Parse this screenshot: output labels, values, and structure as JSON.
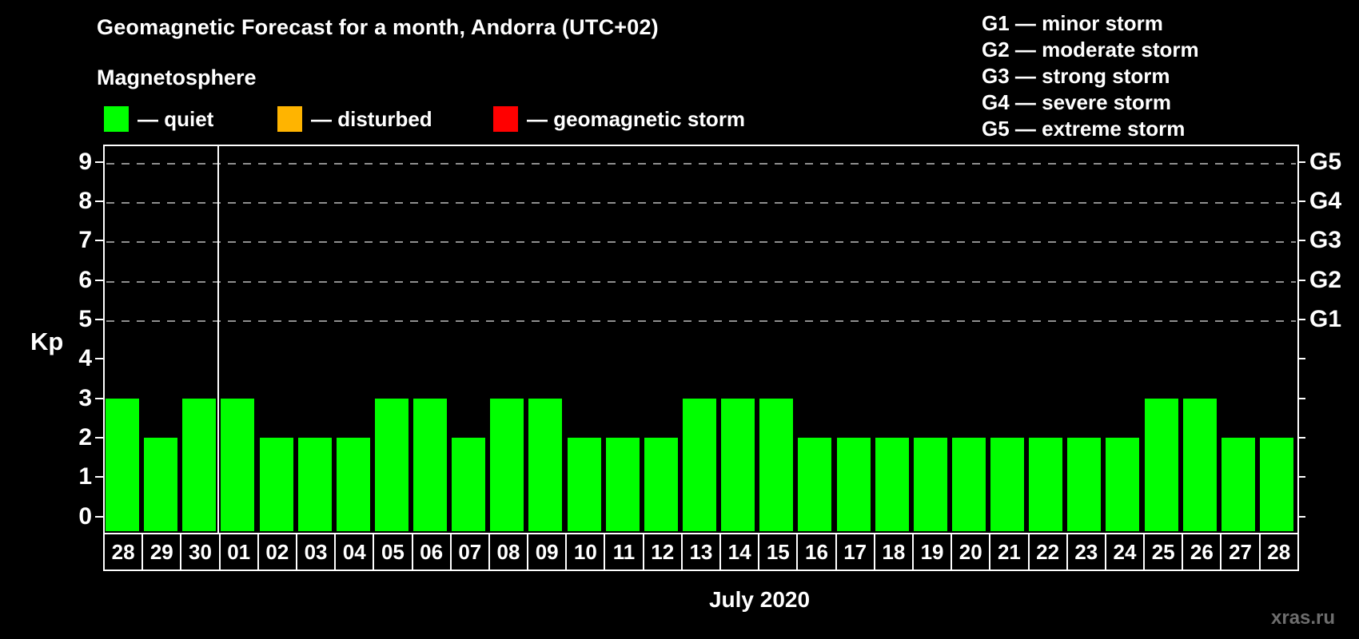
{
  "title": "Geomagnetic Forecast for a month, Andorra (UTC+02)",
  "subtitle": "Magnetosphere",
  "legend": {
    "items": [
      {
        "key": "quiet",
        "label": "— quiet",
        "color": "#00ff00"
      },
      {
        "key": "disturbed",
        "label": "— disturbed",
        "color": "#ffb400"
      },
      {
        "key": "storm",
        "label": "— geomagnetic storm",
        "color": "#ff0000"
      }
    ]
  },
  "g_scale_legend": {
    "items": [
      "G1 — minor storm",
      "G2 — moderate storm",
      "G3 — strong storm",
      "G4 — severe storm",
      "G5 — extreme storm"
    ]
  },
  "axis": {
    "left_label": "Kp"
  },
  "footer": {
    "month_label": "July 2020",
    "watermark": "xras.ru"
  },
  "chart_data": {
    "type": "bar",
    "title": "Geomagnetic Forecast for a month, Andorra (UTC+02)",
    "ylabel": "Kp",
    "xlabel": "July 2020",
    "ylim": [
      0,
      9.4
    ],
    "yticks": [
      0,
      1,
      2,
      3,
      4,
      5,
      6,
      7,
      8,
      9
    ],
    "grid_dashed_at": [
      5,
      6,
      7,
      8,
      9
    ],
    "legend_position": "top-left",
    "right_axis_labels": [
      {
        "label": "G1",
        "kp": 5
      },
      {
        "label": "G2",
        "kp": 6
      },
      {
        "label": "G3",
        "kp": 7
      },
      {
        "label": "G4",
        "kp": 8
      },
      {
        "label": "G5",
        "kp": 9
      }
    ],
    "categories": [
      "28",
      "29",
      "30",
      "01",
      "02",
      "03",
      "04",
      "05",
      "06",
      "07",
      "08",
      "09",
      "10",
      "11",
      "12",
      "13",
      "14",
      "15",
      "16",
      "17",
      "18",
      "19",
      "20",
      "21",
      "22",
      "23",
      "24",
      "25",
      "26",
      "27",
      "28"
    ],
    "values": [
      3,
      2,
      3,
      3,
      2,
      2,
      2,
      3,
      3,
      2,
      3,
      3,
      2,
      2,
      2,
      3,
      3,
      3,
      2,
      2,
      2,
      2,
      2,
      2,
      2,
      2,
      2,
      3,
      3,
      2,
      2
    ],
    "statuses": [
      "quiet",
      "quiet",
      "quiet",
      "quiet",
      "quiet",
      "quiet",
      "quiet",
      "quiet",
      "quiet",
      "quiet",
      "quiet",
      "quiet",
      "quiet",
      "quiet",
      "quiet",
      "quiet",
      "quiet",
      "quiet",
      "quiet",
      "quiet",
      "quiet",
      "quiet",
      "quiet",
      "quiet",
      "quiet",
      "quiet",
      "quiet",
      "quiet",
      "quiet",
      "quiet",
      "quiet"
    ],
    "month_separator_after_index": 2
  }
}
